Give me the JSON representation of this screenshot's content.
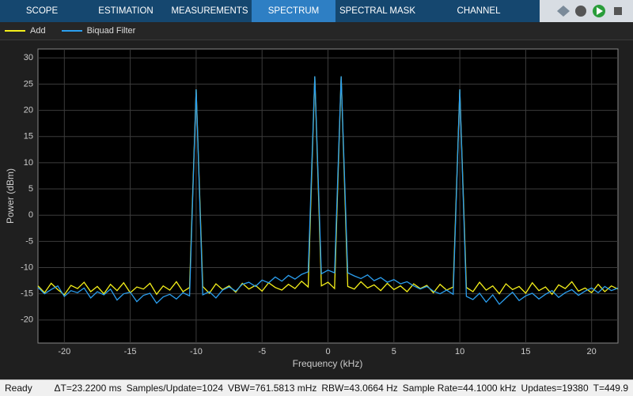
{
  "toolbar": {
    "tabs": [
      "SCOPE",
      "ESTIMATION",
      "MEASUREMENTS",
      "SPECTRUM",
      "SPECTRAL MASK",
      "CHANNEL MEASUREMENTS"
    ]
  },
  "status_bar": {
    "state": "Ready",
    "items": [
      "ΔT=23.2200 ms",
      "Samples/Update=1024",
      "VBW=761.5813 mHz",
      "RBW=43.0664 Hz",
      "Sample Rate=44.1000 kHz",
      "Updates=19380",
      "T=449.9"
    ]
  },
  "chart_data": {
    "type": "line",
    "xlabel": "Frequency (kHz)",
    "ylabel": "Power (dBm)",
    "x": [
      -22,
      -21.5,
      -21,
      -20.5,
      -20,
      -19.5,
      -19,
      -18.5,
      -18,
      -17.5,
      -17,
      -16.5,
      -16,
      -15.5,
      -15,
      -14.5,
      -14,
      -13.5,
      -13,
      -12.5,
      -12,
      -11.5,
      -11,
      -10.5,
      -10,
      -9.5,
      -9,
      -8.5,
      -8,
      -7.5,
      -7,
      -6.5,
      -6,
      -5.5,
      -5,
      -4.5,
      -4,
      -3.5,
      -3,
      -2.5,
      -2,
      -1.5,
      -1,
      -0.5,
      0,
      0.5,
      1,
      1.5,
      2,
      2.5,
      3,
      3.5,
      4,
      4.5,
      5,
      5.5,
      6,
      6.5,
      7,
      7.5,
      8,
      8.5,
      9,
      9.5,
      10,
      10.5,
      11,
      11.5,
      12,
      12.5,
      13,
      13.5,
      14,
      14.5,
      15,
      15.5,
      16,
      16.5,
      17,
      17.5,
      18,
      18.5,
      19,
      19.5,
      20,
      20.5,
      21,
      21.5,
      22
    ],
    "series": [
      {
        "name": "Add",
        "color": "#f5f01a",
        "values": [
          -13.5,
          -14.8,
          -13,
          -14.2,
          -15.2,
          -13.4,
          -14,
          -12.8,
          -14.6,
          -13.6,
          -15,
          -13.2,
          -14.4,
          -12.9,
          -14.8,
          -13.7,
          -14.1,
          -13,
          -15.1,
          -13.5,
          -14.3,
          -12.7,
          -14.6,
          -13.8,
          24,
          -13.6,
          -14.9,
          -13.1,
          -14.2,
          -13.5,
          -14.7,
          -13,
          -14.1,
          -13.4,
          -14.5,
          -12.9,
          -13.8,
          -14.3,
          -13.2,
          -14,
          -12.6,
          -13.7,
          26.5,
          -13.5,
          -12.8,
          -14,
          26.5,
          -13.6,
          -14.1,
          -12.7,
          -13.9,
          -13.3,
          -14.4,
          -13,
          -14.2,
          -13.5,
          -14.6,
          -13.1,
          -14,
          -13.4,
          -14.8,
          -13.2,
          -14.3,
          -13.7,
          24,
          -13.8,
          -14.6,
          -12.8,
          -14.3,
          -13.5,
          -15,
          -13.1,
          -14.2,
          -13.6,
          -14.9,
          -12.9,
          -14.4,
          -13.7,
          -15.1,
          -13.3,
          -14,
          -12.7,
          -14.5,
          -13.9,
          -14.8,
          -13.2,
          -14.6,
          -13.5,
          -14.1
        ]
      },
      {
        "name": "Biquad Filter",
        "color": "#2b9ff0",
        "values": [
          -13.8,
          -15,
          -14.2,
          -13.5,
          -15.5,
          -14.4,
          -14.8,
          -13.9,
          -15.8,
          -14.6,
          -15.2,
          -14.1,
          -16.2,
          -15,
          -14.7,
          -16.5,
          -15.3,
          -14.9,
          -16.8,
          -15.6,
          -15.1,
          -16,
          -14.8,
          -15.4,
          24,
          -15.2,
          -14.6,
          -15.8,
          -14.3,
          -13.7,
          -14.5,
          -13.2,
          -12.8,
          -13.6,
          -12.4,
          -12.9,
          -11.8,
          -12.6,
          -11.5,
          -12.2,
          -11.3,
          -10.8,
          26.5,
          -11.2,
          -10.5,
          -11,
          26.5,
          -11,
          -11.6,
          -12.1,
          -11.4,
          -12.5,
          -11.9,
          -12.8,
          -12.3,
          -13.1,
          -12.7,
          -13.5,
          -14.1,
          -13.6,
          -14.5,
          -15,
          -14.3,
          -15.1,
          24,
          -15.5,
          -16.1,
          -14.9,
          -16.6,
          -15.2,
          -17,
          -15.8,
          -14.7,
          -16.3,
          -15.4,
          -14.9,
          -16,
          -15.1,
          -14.4,
          -15.7,
          -14.8,
          -14.2,
          -15.3,
          -14.5,
          -13.9,
          -14.8,
          -13.6,
          -14.4,
          -13.9
        ]
      }
    ],
    "xlim": [
      -22,
      22
    ],
    "ylim": [
      -24.4,
      31.7
    ],
    "xticks": [
      -20,
      -15,
      -10,
      -5,
      0,
      5,
      10,
      15,
      20
    ],
    "yticks": [
      -20,
      -15,
      -10,
      -5,
      0,
      5,
      10,
      15,
      20,
      25,
      30
    ],
    "grid": true
  }
}
